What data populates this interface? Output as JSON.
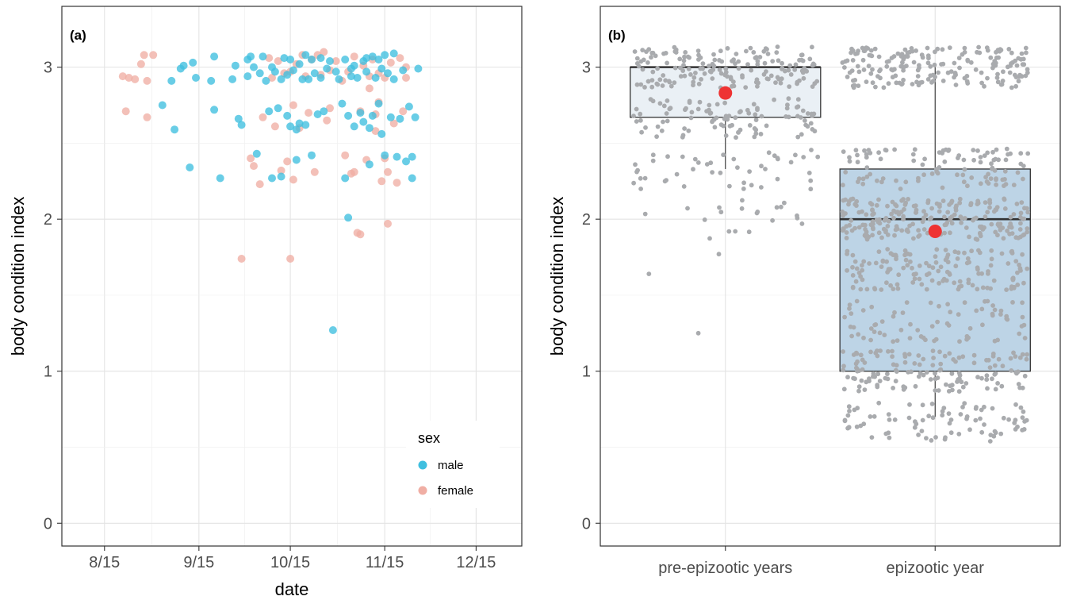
{
  "chart_data": [
    {
      "panel": "(a)",
      "type": "scatter",
      "xlabel": "date",
      "ylabel": "body condition index",
      "xlim": [
        "8/1",
        "12/30"
      ],
      "ylim": [
        -0.15,
        3.4
      ],
      "x_ticks": [
        "8/15",
        "9/15",
        "10/15",
        "11/15",
        "12/15"
      ],
      "y_ticks": [
        "0",
        "1",
        "2",
        "3"
      ],
      "grid": true,
      "legend": {
        "title": "sex",
        "placement": "bottom-right",
        "entries": [
          {
            "label": "male",
            "color": "#3fbfdf"
          },
          {
            "label": "female",
            "color": "#f0aea4"
          }
        ]
      },
      "series": [
        {
          "name": "male",
          "color": "#3fbfdf",
          "points": [
            [
              "9/3",
              2.75
            ],
            [
              "9/6",
              2.91
            ],
            [
              "9/7",
              2.59
            ],
            [
              "9/9",
              2.99
            ],
            [
              "9/10",
              3.01
            ],
            [
              "9/12",
              2.34
            ],
            [
              "9/13",
              3.03
            ],
            [
              "9/14",
              2.93
            ],
            [
              "9/20",
              3.07
            ],
            [
              "9/19",
              2.91
            ],
            [
              "9/20",
              2.72
            ],
            [
              "9/22",
              2.27
            ],
            [
              "9/26",
              2.92
            ],
            [
              "9/27",
              3.01
            ],
            [
              "9/28",
              2.66
            ],
            [
              "9/29",
              2.62
            ],
            [
              "10/1",
              3.05
            ],
            [
              "10/1",
              2.94
            ],
            [
              "10/2",
              3.07
            ],
            [
              "10/3",
              3.0
            ],
            [
              "10/4",
              2.43
            ],
            [
              "10/5",
              2.96
            ],
            [
              "10/6",
              3.07
            ],
            [
              "10/7",
              2.91
            ],
            [
              "10/8",
              2.71
            ],
            [
              "10/9",
              3.0
            ],
            [
              "10/10",
              2.97
            ],
            [
              "10/11",
              2.73
            ],
            [
              "10/12",
              2.28
            ],
            [
              "10/12",
              2.92
            ],
            [
              "10/13",
              3.06
            ],
            [
              "10/14",
              2.95
            ],
            [
              "10/15",
              2.61
            ],
            [
              "10/15",
              3.05
            ],
            [
              "10/16",
              2.98
            ],
            [
              "10/17",
              2.39
            ],
            [
              "10/17",
              2.59
            ],
            [
              "10/18",
              3.02
            ],
            [
              "10/18",
              2.63
            ],
            [
              "10/19",
              2.92
            ],
            [
              "10/20",
              3.08
            ],
            [
              "10/20",
              2.62
            ],
            [
              "10/21",
              2.92
            ],
            [
              "10/22",
              3.05
            ],
            [
              "10/22",
              2.42
            ],
            [
              "10/23",
              2.96
            ],
            [
              "10/24",
              2.69
            ],
            [
              "10/25",
              3.06
            ],
            [
              "10/25",
              2.93
            ],
            [
              "10/26",
              2.71
            ],
            [
              "10/27",
              2.99
            ],
            [
              "10/29",
              1.27
            ],
            [
              "10/30",
              2.97
            ],
            [
              "10/31",
              2.92
            ],
            [
              "11/1",
              2.76
            ],
            [
              "11/2",
              3.05
            ],
            [
              "11/2",
              2.27
            ],
            [
              "11/3",
              2.01
            ],
            [
              "11/3",
              2.68
            ],
            [
              "11/4",
              2.99
            ],
            [
              "11/5",
              3.01
            ],
            [
              "11/5",
              2.61
            ],
            [
              "11/6",
              2.93
            ],
            [
              "11/7",
              2.7
            ],
            [
              "11/8",
              3.04
            ],
            [
              "11/8",
              2.64
            ],
            [
              "11/9",
              2.97
            ],
            [
              "11/10",
              2.6
            ],
            [
              "11/10",
              2.36
            ],
            [
              "11/11",
              3.07
            ],
            [
              "11/11",
              2.68
            ],
            [
              "11/12",
              2.93
            ],
            [
              "11/13",
              3.05
            ],
            [
              "11/13",
              2.76
            ],
            [
              "11/14",
              2.99
            ],
            [
              "11/14",
              2.56
            ],
            [
              "11/15",
              3.08
            ],
            [
              "11/15",
              2.42
            ],
            [
              "11/16",
              2.96
            ],
            [
              "11/17",
              2.67
            ],
            [
              "11/18",
              3.09
            ],
            [
              "11/18",
              2.92
            ],
            [
              "11/19",
              2.41
            ],
            [
              "11/20",
              2.66
            ],
            [
              "11/21",
              2.98
            ],
            [
              "11/22",
              2.38
            ],
            [
              "11/23",
              2.74
            ],
            [
              "11/24",
              2.41
            ],
            [
              "11/24",
              2.27
            ],
            [
              "11/25",
              2.67
            ],
            [
              "11/26",
              2.99
            ],
            [
              "10/28",
              3.04
            ],
            [
              "11/4",
              2.94
            ],
            [
              "11/9",
              3.06
            ],
            [
              "10/14",
              2.68
            ],
            [
              "10/9",
              2.27
            ]
          ]
        },
        {
          "name": "female",
          "color": "#f0aea4",
          "points": [
            [
              "8/21",
              2.94
            ],
            [
              "8/22",
              2.71
            ],
            [
              "8/23",
              2.93
            ],
            [
              "8/25",
              2.92
            ],
            [
              "8/27",
              3.02
            ],
            [
              "8/28",
              3.08
            ],
            [
              "8/29",
              2.91
            ],
            [
              "8/29",
              2.67
            ],
            [
              "8/31",
              3.08
            ],
            [
              "9/29",
              1.74
            ],
            [
              "10/2",
              2.4
            ],
            [
              "10/3",
              2.35
            ],
            [
              "10/5",
              2.23
            ],
            [
              "10/6",
              2.67
            ],
            [
              "10/8",
              3.06
            ],
            [
              "10/9",
              2.93
            ],
            [
              "10/10",
              2.61
            ],
            [
              "10/11",
              3.04
            ],
            [
              "10/12",
              2.32
            ],
            [
              "10/13",
              2.96
            ],
            [
              "10/14",
              2.38
            ],
            [
              "10/15",
              1.74
            ],
            [
              "10/15",
              2.97
            ],
            [
              "10/16",
              2.75
            ],
            [
              "10/16",
              2.26
            ],
            [
              "10/17",
              3.02
            ],
            [
              "10/18",
              2.6
            ],
            [
              "10/19",
              3.08
            ],
            [
              "10/20",
              2.94
            ],
            [
              "10/21",
              2.7
            ],
            [
              "10/22",
              3.05
            ],
            [
              "10/23",
              2.31
            ],
            [
              "10/24",
              3.08
            ],
            [
              "10/25",
              2.95
            ],
            [
              "10/26",
              3.1
            ],
            [
              "10/27",
              2.65
            ],
            [
              "10/28",
              2.98
            ],
            [
              "10/30",
              3.04
            ],
            [
              "11/1",
              2.91
            ],
            [
              "11/2",
              2.42
            ],
            [
              "11/3",
              2.97
            ],
            [
              "11/4",
              2.3
            ],
            [
              "11/5",
              3.07
            ],
            [
              "11/5",
              2.31
            ],
            [
              "11/6",
              1.91
            ],
            [
              "11/7",
              1.9
            ],
            [
              "11/7",
              2.71
            ],
            [
              "11/8",
              3.01
            ],
            [
              "11/9",
              2.39
            ],
            [
              "11/10",
              2.94
            ],
            [
              "11/11",
              3.05
            ],
            [
              "11/12",
              2.69
            ],
            [
              "11/12",
              2.58
            ],
            [
              "11/13",
              2.96
            ],
            [
              "11/14",
              2.25
            ],
            [
              "11/15",
              2.4
            ],
            [
              "11/16",
              2.31
            ],
            [
              "11/16",
              1.97
            ],
            [
              "11/17",
              3.03
            ],
            [
              "11/18",
              2.63
            ],
            [
              "11/19",
              2.24
            ],
            [
              "11/20",
              3.06
            ],
            [
              "11/21",
              2.71
            ],
            [
              "11/22",
              2.93
            ],
            [
              "11/22",
              3.0
            ],
            [
              "11/10",
              2.86
            ],
            [
              "11/13",
              2.77
            ],
            [
              "10/28",
              2.73
            ],
            [
              "11/15",
              2.93
            ]
          ]
        }
      ]
    },
    {
      "panel": "(b)",
      "type": "box",
      "ylabel": "body condition index",
      "ylim": [
        -0.15,
        3.4
      ],
      "categories": [
        "pre-epizootic years",
        "epizootic year"
      ],
      "y_ticks": [
        "0",
        "1",
        "2",
        "3"
      ],
      "grid": true,
      "box_fill_colors": [
        "#eaf0f5",
        "#bdd4e6"
      ],
      "mean_color": "#ee3333",
      "jitter_color": "#a9abae",
      "boxes": [
        {
          "category": "pre-epizootic years",
          "whisker_low": 2.33,
          "q1": 2.67,
          "median": 3.0,
          "q3": 3.0,
          "whisker_high": 3.0,
          "mean": 2.83,
          "jitter_count": 330,
          "outliers": [
            2.07,
            1.92,
            1.77,
            1.64,
            1.97,
            1.25
          ]
        },
        {
          "category": "epizootic year",
          "whisker_low": 0.7,
          "q1": 1.0,
          "median": 2.0,
          "q3": 2.33,
          "whisker_high": 3.0,
          "mean": 1.92,
          "jitter_count": 950,
          "outliers": []
        }
      ]
    }
  ]
}
